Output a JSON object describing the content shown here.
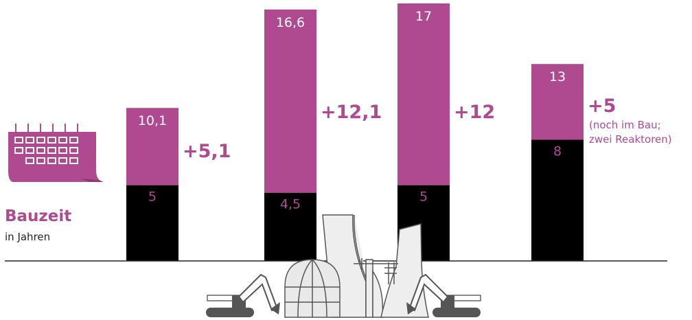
{
  "chart_data": {
    "type": "bar",
    "title": "Bauzeit",
    "subtitle": "in Jahren",
    "ylim": [
      0,
      17
    ],
    "grid": false,
    "colors": {
      "planned": "#000000",
      "actual": "#b04a90"
    },
    "categories": [
      "",
      "",
      "",
      ""
    ],
    "planned_values": [
      5,
      4.5,
      5,
      8
    ],
    "actual_values": [
      10.1,
      16.6,
      17,
      13
    ],
    "planned_labels": [
      "5",
      "4,5",
      "5",
      "8"
    ],
    "actual_labels": [
      "10,1",
      "16,6",
      "17",
      "13"
    ],
    "deltas": [
      "+5,1",
      "+12,1",
      "+12",
      "+5"
    ],
    "notes": [
      "",
      "",
      "",
      "(noch im Bau;|zwei Reaktoren)"
    ]
  },
  "icons": {
    "calendar": "calendar-icon",
    "excavator": "excavator-icon",
    "reactor": "nuclear-plant-icon"
  }
}
